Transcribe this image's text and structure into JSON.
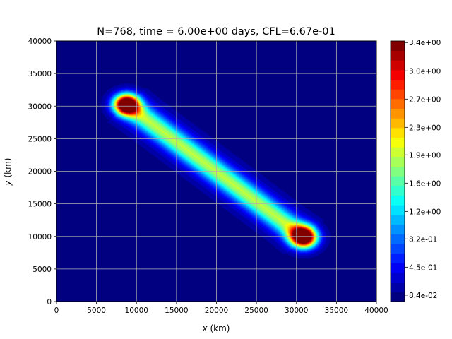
{
  "chart_data": {
    "type": "heatmap",
    "title": "N=768, time = 6.00e+00 days, CFL=6.67e-01",
    "xlabel_var": "x",
    "xlabel_unit": "(km)",
    "ylabel_var": "y",
    "ylabel_unit": "(km)",
    "xlim": [
      0,
      40000
    ],
    "ylim": [
      0,
      40000
    ],
    "xticks": [
      0,
      5000,
      10000,
      15000,
      20000,
      25000,
      30000,
      35000,
      40000
    ],
    "yticks": [
      0,
      5000,
      10000,
      15000,
      20000,
      25000,
      30000,
      35000,
      40000
    ],
    "xtick_labels": [
      "0",
      "5000",
      "10000",
      "15000",
      "20000",
      "25000",
      "30000",
      "35000",
      "40000"
    ],
    "ytick_labels": [
      "0",
      "5000",
      "10000",
      "15000",
      "20000",
      "25000",
      "30000",
      "35000",
      "40000"
    ],
    "grid": true,
    "colormap": "jet",
    "levels": [
      0.0,
      0.1263,
      0.2526,
      0.3789,
      0.5053,
      0.6316,
      0.7579,
      0.8842,
      1.0105,
      1.1368,
      1.2632,
      1.3895,
      1.5158,
      1.6421,
      1.7684,
      1.8947,
      2.0211,
      2.1474,
      2.2737,
      2.4,
      2.5263,
      2.6526,
      2.7789,
      2.9053,
      3.0316,
      3.1579,
      3.2842,
      3.4105
    ],
    "colorbar_tick_labels": [
      "3.4e+00",
      "3.0e+00",
      "2.7e+00",
      "2.3e+00",
      "1.9e+00",
      "1.6e+00",
      "1.2e+00",
      "8.2e-01",
      "4.5e-01",
      "8.4e-02"
    ],
    "colorbar_tick_values": [
      3.39,
      3.02,
      2.65,
      2.28,
      1.92,
      1.55,
      1.18,
      0.82,
      0.45,
      0.084
    ],
    "field": {
      "description_of_features": "diagonal ridge",
      "ridge_start": [
        8800,
        30200
      ],
      "ridge_end": [
        31000,
        9800
      ],
      "peak_1": {
        "x": 8800,
        "y": 30200,
        "value": 3.4
      },
      "peak_2": {
        "x": 30800,
        "y": 10000,
        "value": 3.3
      }
    }
  },
  "colors": {
    "axes_edge": "#000000",
    "grid": "#b0b0b0"
  }
}
